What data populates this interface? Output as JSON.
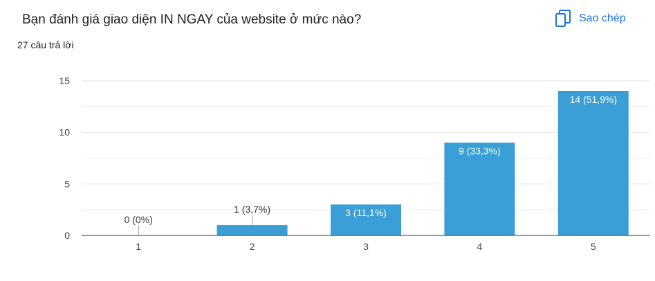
{
  "question": {
    "title": "Bạn đánh giá giao diện IN NGAY của website ở mức nào?",
    "response_count": "27 câu trả lời"
  },
  "copy_button": {
    "label": "Sao chép",
    "icon": "copy-icon"
  },
  "colors": {
    "bar": "#3a9fd6",
    "accent": "#1a73e8"
  },
  "chart_data": {
    "type": "bar",
    "categories": [
      "1",
      "2",
      "3",
      "4",
      "5"
    ],
    "values": [
      0,
      1,
      3,
      9,
      14
    ],
    "data_labels": [
      "0 (0%)",
      "1 (3,7%)",
      "3 (11,1%)",
      "9 (33,3%)",
      "14 (51,9%)"
    ],
    "ylim": [
      0,
      15
    ],
    "yticks": [
      0,
      5,
      10,
      15
    ],
    "grid": true,
    "title": "",
    "xlabel": "",
    "ylabel": ""
  }
}
